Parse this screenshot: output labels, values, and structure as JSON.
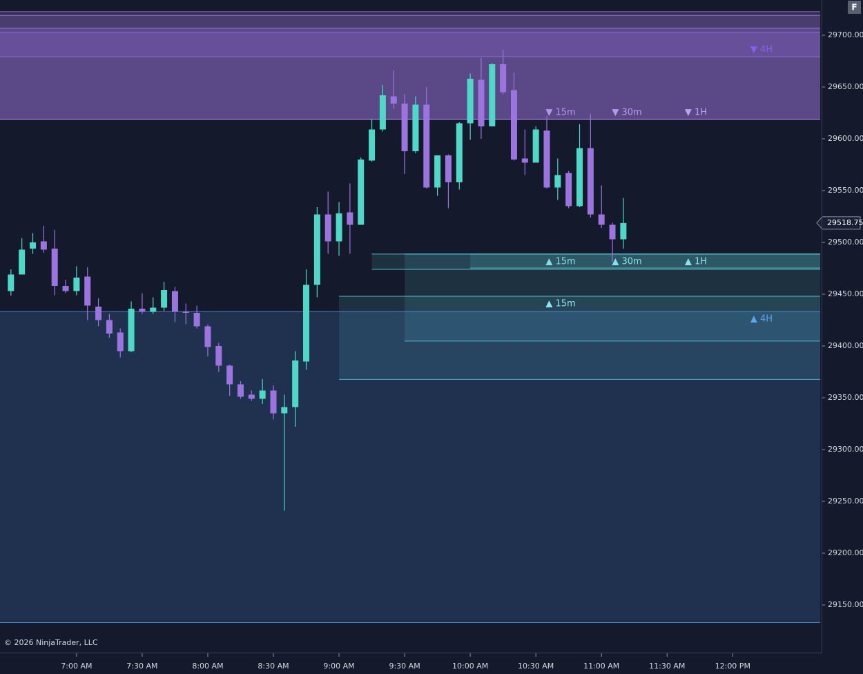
{
  "chart_data": {
    "type": "candlestick",
    "x": [
      "06:30",
      "06:35",
      "06:40",
      "06:45",
      "06:50",
      "06:55",
      "07:00",
      "07:05",
      "07:10",
      "07:15",
      "07:20",
      "07:25",
      "07:30",
      "07:35",
      "07:40",
      "07:45",
      "07:50",
      "07:55",
      "08:00",
      "08:05",
      "08:10",
      "08:15",
      "08:20",
      "08:25",
      "08:30",
      "08:35",
      "08:40",
      "08:45",
      "08:50",
      "08:55",
      "09:00",
      "09:05",
      "09:10",
      "09:15",
      "09:20",
      "09:25",
      "09:30",
      "09:35",
      "09:40",
      "09:45",
      "09:50",
      "09:55",
      "10:00",
      "10:05",
      "10:10",
      "10:15",
      "10:20",
      "10:25",
      "10:30",
      "10:35",
      "10:40",
      "10:45",
      "10:50",
      "10:55",
      "11:00",
      "11:05",
      "11:10"
    ],
    "open": [
      29453,
      29469,
      29494,
      29501,
      29494,
      29458,
      29453,
      29467,
      29438,
      29425,
      29413,
      29395,
      29436,
      29433,
      29437,
      29453,
      29433,
      29432,
      29419,
      29400,
      29381,
      29363,
      29353,
      29349,
      29357,
      29335,
      29341,
      29385,
      29459,
      29527,
      29501,
      29529,
      29517,
      29579,
      29609,
      29641,
      29634,
      29588,
      29633,
      29553,
      29584,
      29558,
      29615,
      29657,
      29612,
      29672,
      29647,
      29581,
      29577,
      29608,
      29553,
      29567,
      29535,
      29591,
      29527,
      29517,
      29503
    ],
    "high": [
      29474,
      29504,
      29509,
      29516,
      29512,
      29464,
      29477,
      29476,
      29446,
      29431,
      29417,
      29443,
      29451,
      29447,
      29462,
      29457,
      29441,
      29439,
      29421,
      29403,
      29382,
      29366,
      29357,
      29368,
      29362,
      29353,
      29395,
      29474,
      29534,
      29549,
      29539,
      29557,
      29582,
      29619,
      29652,
      29666,
      29643,
      29641,
      29650,
      29584,
      29585,
      29616,
      29663,
      29678,
      29673,
      29686,
      29664,
      29609,
      29612,
      29622,
      29581,
      29569,
      29614,
      29624,
      29555,
      29519,
      29543
    ],
    "low": [
      29448.7,
      29469,
      29489,
      29490,
      29449,
      29451,
      29449,
      29425,
      29419,
      29408,
      29389,
      29394,
      29431,
      29431,
      29434,
      29423,
      29421,
      29417,
      29390,
      29375,
      29352,
      29349,
      29347,
      29344,
      29329,
      29241,
      29322,
      29377,
      29447,
      29489,
      29487,
      29489,
      29517,
      29578,
      29607,
      29629,
      29566,
      29586,
      29552,
      29545,
      29533,
      29551,
      29599,
      29600,
      29612,
      29643,
      29579,
      29565,
      29577,
      29552,
      29541,
      29533,
      29534,
      29524,
      29514,
      29481,
      29494
    ],
    "close": [
      29469,
      29493,
      29500,
      29493,
      29458,
      29453,
      29466,
      29439,
      29425,
      29412,
      29395,
      29436,
      29433,
      29437,
      29454,
      29433,
      29432,
      29419,
      29399,
      29381,
      29363,
      29351,
      29349,
      29357,
      29335,
      29341,
      29386,
      29459,
      29527,
      29501,
      29528,
      29517,
      29580,
      29609,
      29642,
      29634,
      29588,
      29633,
      29553,
      29584,
      29558,
      29615,
      29658,
      29612,
      29672,
      29645,
      29580,
      29577,
      29609,
      29553,
      29565,
      29535,
      29591,
      29527,
      29517,
      29503,
      29518.75
    ],
    "up_color": "#4fd8c8",
    "down_color": "#9b74e0",
    "xlim": [
      "06:25",
      "12:40"
    ],
    "xticks": [
      {
        "value": "07:00",
        "label": "7:00 AM"
      },
      {
        "value": "07:30",
        "label": "7:30 AM"
      },
      {
        "value": "08:00",
        "label": "8:00 AM"
      },
      {
        "value": "08:30",
        "label": "8:30 AM"
      },
      {
        "value": "09:00",
        "label": "9:00 AM"
      },
      {
        "value": "09:30",
        "label": "9:30 AM"
      },
      {
        "value": "10:00",
        "label": "10:00 AM"
      },
      {
        "value": "10:30",
        "label": "10:30 AM"
      },
      {
        "value": "11:00",
        "label": "11:00 AM"
      },
      {
        "value": "11:30",
        "label": "11:30 AM"
      },
      {
        "value": "12:00",
        "label": "12:00 PM"
      }
    ],
    "ylim": [
      29104,
      29734
    ],
    "yticks": [
      {
        "value": 29150,
        "label": "29150.00"
      },
      {
        "value": 29200,
        "label": "29200.00"
      },
      {
        "value": 29250,
        "label": "29250.00"
      },
      {
        "value": 29300,
        "label": "29300.00"
      },
      {
        "value": 29350,
        "label": "29350.00"
      },
      {
        "value": 29400,
        "label": "29400.00"
      },
      {
        "value": 29450,
        "label": "29450.00"
      },
      {
        "value": 29500,
        "label": "29500.00"
      },
      {
        "value": 29550,
        "label": "29550.00"
      },
      {
        "value": 29600,
        "label": "29600.00"
      },
      {
        "value": 29650,
        "label": "29650.00"
      },
      {
        "value": 29700,
        "label": "29700.00"
      }
    ],
    "current_price": {
      "value": 29518.75,
      "label": "29518.75"
    },
    "zones": [
      {
        "label": "▼ 15m",
        "top": 29722.75,
        "bottom": 29618.75,
        "color": "#a47ee8",
        "label_color": "#b9a2f2"
      },
      {
        "label": "▼ 30m",
        "top": 29719.25,
        "bottom": 29618.75,
        "color": "#a47ee8",
        "label_color": "#b9a2f2"
      },
      {
        "label": "▼ 1H",
        "top": 29706.75,
        "bottom": 29618.75,
        "color": "#a47ee8",
        "label_color": "#b9a2f2"
      },
      {
        "label": "▼ 4H",
        "top": 29702.75,
        "bottom": 29679.25,
        "color": "#9a6ce8",
        "label_color": "#8b5ee6"
      },
      {
        "label": "▲ 15m",
        "start": "09:15",
        "top": 29488.75,
        "bottom": 29474,
        "color": "#5fd0dc",
        "label_color": "#8ee4ee"
      },
      {
        "label": "▲ 30m",
        "start": "10:00",
        "top": 29488.75,
        "bottom": 29475.25,
        "color": "#5fd0dc",
        "label_color": "#8ee4ee"
      },
      {
        "label": "▲ 1H",
        "start": "09:30",
        "top": 29488.75,
        "bottom": 29404.75,
        "color": "#5fd0dc",
        "label_color": "#8ee4ee"
      },
      {
        "label": "▲ 15m",
        "start": "09:00",
        "top": 29448,
        "bottom": 29367.75,
        "color": "#5fd0dc",
        "label_color": "#8ee4ee"
      },
      {
        "label": "▲ 4H",
        "top": 29433.25,
        "bottom": 29133,
        "color": "#4f8fe0",
        "label_color": "#5aa8f0"
      }
    ],
    "copyright": "© 2026 NinjaTrader, LLC",
    "badge": "F"
  }
}
